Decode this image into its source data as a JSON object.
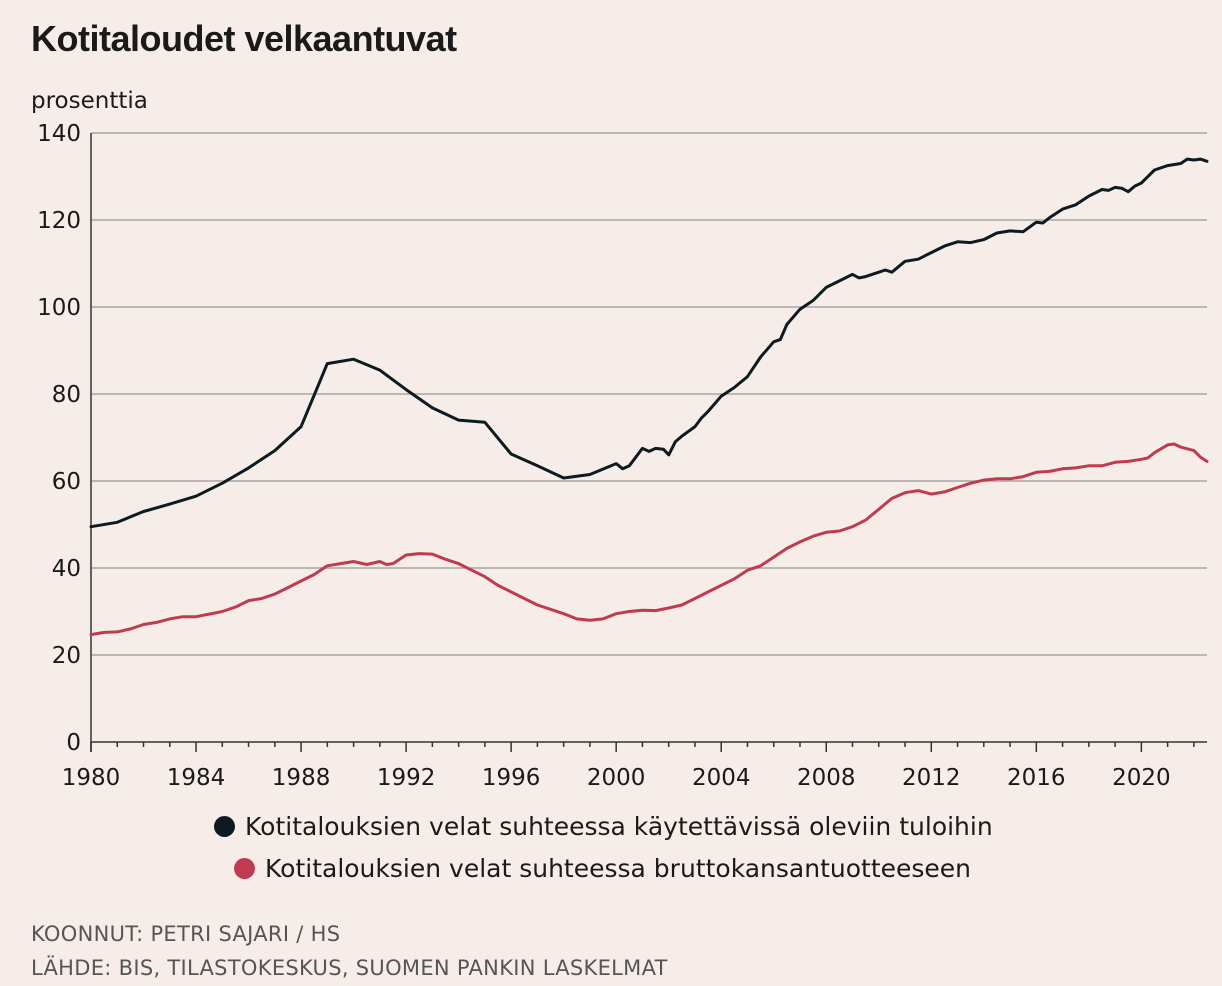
{
  "title": "Kotitaloudet velkaantuvat",
  "colors": {
    "background": "#f7ede8",
    "grid": "#a8a5a5",
    "series1": "#0d1a1f",
    "series2": "#bf3b50"
  },
  "chart_data": {
    "type": "line",
    "title": "Kotitaloudet velkaantuvat",
    "ylabel": "prosenttia",
    "xlabel": "",
    "xlim": [
      1980,
      2022.5
    ],
    "ylim": [
      0,
      140
    ],
    "yticks": [
      "0",
      "20",
      "40",
      "60",
      "80",
      "100",
      "120",
      "140"
    ],
    "xticks": [
      "1980",
      "1984",
      "1988",
      "1992",
      "1996",
      "2000",
      "2004",
      "2008",
      "2012",
      "2016",
      "2020"
    ],
    "grid": true,
    "legend_position": "bottom",
    "series": [
      {
        "name": "Kotitalouksien velat suhteessa käytettävissä oleviin tuloihin",
        "color": "#0d1a1f",
        "points": [
          [
            1980,
            49.5
          ],
          [
            1981,
            50.5
          ],
          [
            1982,
            53
          ],
          [
            1983,
            54.7
          ],
          [
            1984,
            56.5
          ],
          [
            1985,
            59.5
          ],
          [
            1986,
            63
          ],
          [
            1987,
            67
          ],
          [
            1988,
            72.5
          ],
          [
            1989,
            87
          ],
          [
            1990,
            88
          ],
          [
            1991,
            85.5
          ],
          [
            1992,
            81
          ],
          [
            1993,
            76.8
          ],
          [
            1994,
            74
          ],
          [
            1995,
            73.5
          ],
          [
            1996,
            66.2
          ],
          [
            1997,
            63.5
          ],
          [
            1998,
            60.7
          ],
          [
            1999,
            61.5
          ],
          [
            2000,
            64
          ],
          [
            2000.25,
            62.8
          ],
          [
            2000.5,
            63.5
          ],
          [
            2001,
            67.5
          ],
          [
            2001.25,
            66.8
          ],
          [
            2001.5,
            67.5
          ],
          [
            2001.8,
            67.3
          ],
          [
            2002,
            66
          ],
          [
            2002.25,
            69
          ],
          [
            2002.5,
            70.3
          ],
          [
            2003,
            72.5
          ],
          [
            2003.25,
            74.5
          ],
          [
            2003.5,
            76
          ],
          [
            2004,
            79.5
          ],
          [
            2004.5,
            81.5
          ],
          [
            2005,
            84
          ],
          [
            2005.5,
            88.5
          ],
          [
            2006,
            92
          ],
          [
            2006.25,
            92.5
          ],
          [
            2006.5,
            96
          ],
          [
            2007,
            99.5
          ],
          [
            2007.5,
            101.5
          ],
          [
            2008,
            104.5
          ],
          [
            2008.5,
            106
          ],
          [
            2009,
            107.5
          ],
          [
            2009.25,
            106.7
          ],
          [
            2009.5,
            107
          ],
          [
            2010,
            108
          ],
          [
            2010.25,
            108.5
          ],
          [
            2010.5,
            108
          ],
          [
            2011,
            110.5
          ],
          [
            2011.5,
            111
          ],
          [
            2012,
            112.5
          ],
          [
            2012.5,
            114
          ],
          [
            2013,
            115
          ],
          [
            2013.5,
            114.8
          ],
          [
            2014,
            115.5
          ],
          [
            2014.5,
            117
          ],
          [
            2015,
            117.5
          ],
          [
            2015.5,
            117.3
          ],
          [
            2016,
            119.5
          ],
          [
            2016.25,
            119.3
          ],
          [
            2016.5,
            120.5
          ],
          [
            2017,
            122.5
          ],
          [
            2017.5,
            123.5
          ],
          [
            2018,
            125.5
          ],
          [
            2018.5,
            127
          ],
          [
            2018.75,
            126.8
          ],
          [
            2019,
            127.5
          ],
          [
            2019.25,
            127.3
          ],
          [
            2019.5,
            126.5
          ],
          [
            2019.75,
            127.8
          ],
          [
            2020,
            128.5
          ],
          [
            2020.5,
            131.5
          ],
          [
            2021,
            132.5
          ],
          [
            2021.5,
            133
          ],
          [
            2021.75,
            134
          ],
          [
            2022,
            133.8
          ],
          [
            2022.25,
            134
          ],
          [
            2022.5,
            133.5
          ]
        ]
      },
      {
        "name": "Kotitalouksien velat suhteessa bruttokansantuotteeseen",
        "color": "#bf3b50",
        "points": [
          [
            1980,
            24.7
          ],
          [
            1980.5,
            25.2
          ],
          [
            1981,
            25.3
          ],
          [
            1981.5,
            26
          ],
          [
            1982,
            27
          ],
          [
            1982.5,
            27.5
          ],
          [
            1983,
            28.3
          ],
          [
            1983.5,
            28.8
          ],
          [
            1984,
            28.8
          ],
          [
            1984.5,
            29.4
          ],
          [
            1985,
            30
          ],
          [
            1985.5,
            31
          ],
          [
            1986,
            32.5
          ],
          [
            1986.5,
            33
          ],
          [
            1987,
            34
          ],
          [
            1987.5,
            35.5
          ],
          [
            1988,
            37
          ],
          [
            1988.5,
            38.5
          ],
          [
            1989,
            40.5
          ],
          [
            1989.5,
            41
          ],
          [
            1990,
            41.5
          ],
          [
            1990.5,
            40.8
          ],
          [
            1991,
            41.5
          ],
          [
            1991.25,
            40.8
          ],
          [
            1991.5,
            41
          ],
          [
            1992,
            43
          ],
          [
            1992.5,
            43.3
          ],
          [
            1993,
            43.2
          ],
          [
            1993.5,
            42
          ],
          [
            1994,
            41
          ],
          [
            1994.5,
            39.5
          ],
          [
            1995,
            38
          ],
          [
            1995.5,
            36
          ],
          [
            1996,
            34.5
          ],
          [
            1996.5,
            33
          ],
          [
            1997,
            31.5
          ],
          [
            1997.5,
            30.5
          ],
          [
            1998,
            29.5
          ],
          [
            1998.5,
            28.3
          ],
          [
            1999,
            28
          ],
          [
            1999.5,
            28.3
          ],
          [
            2000,
            29.5
          ],
          [
            2000.5,
            30
          ],
          [
            2001,
            30.3
          ],
          [
            2001.5,
            30.2
          ],
          [
            2002,
            30.8
          ],
          [
            2002.5,
            31.5
          ],
          [
            2003,
            33
          ],
          [
            2003.5,
            34.5
          ],
          [
            2004,
            36
          ],
          [
            2004.5,
            37.5
          ],
          [
            2005,
            39.5
          ],
          [
            2005.5,
            40.5
          ],
          [
            2006,
            42.5
          ],
          [
            2006.5,
            44.5
          ],
          [
            2007,
            46
          ],
          [
            2007.5,
            47.3
          ],
          [
            2008,
            48.2
          ],
          [
            2008.5,
            48.5
          ],
          [
            2009,
            49.5
          ],
          [
            2009.5,
            51
          ],
          [
            2010,
            53.5
          ],
          [
            2010.5,
            56
          ],
          [
            2011,
            57.3
          ],
          [
            2011.5,
            57.8
          ],
          [
            2012,
            57
          ],
          [
            2012.5,
            57.5
          ],
          [
            2013,
            58.5
          ],
          [
            2013.5,
            59.5
          ],
          [
            2014,
            60.2
          ],
          [
            2014.5,
            60.5
          ],
          [
            2015,
            60.5
          ],
          [
            2015.5,
            61
          ],
          [
            2016,
            62
          ],
          [
            2016.5,
            62.2
          ],
          [
            2017,
            62.8
          ],
          [
            2017.5,
            63
          ],
          [
            2018,
            63.5
          ],
          [
            2018.5,
            63.5
          ],
          [
            2019,
            64.3
          ],
          [
            2019.5,
            64.5
          ],
          [
            2020,
            65
          ],
          [
            2020.25,
            65.3
          ],
          [
            2020.5,
            66.5
          ],
          [
            2021,
            68.3
          ],
          [
            2021.25,
            68.5
          ],
          [
            2021.5,
            67.8
          ],
          [
            2022,
            67
          ],
          [
            2022.25,
            65.5
          ],
          [
            2022.5,
            64.5
          ]
        ]
      }
    ]
  },
  "legend": [
    {
      "label": "Kotitalouksien velat suhteessa käytettävissä oleviin tuloihin",
      "color": "#0d1a1f"
    },
    {
      "label": "Kotitalouksien velat suhteessa bruttokansantuotteeseen",
      "color": "#bf3b50"
    }
  ],
  "footer": {
    "author": "KOONNUT: PETRI SAJARI / HS",
    "source": "LÄHDE: BIS, TILASTOKESKUS, SUOMEN PANKIN LASKELMAT"
  }
}
